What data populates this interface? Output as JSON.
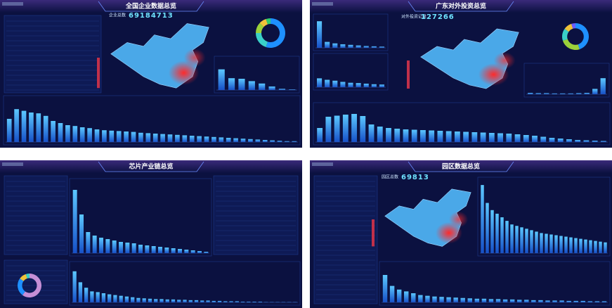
{
  "panels": [
    {
      "title": "全国企业数据总览",
      "stat_label": "企业总数",
      "stat_value": 69184713,
      "donut": {
        "values": [
          55,
          20,
          12,
          8,
          5
        ],
        "colors": [
          "#1e90ff",
          "#3ad0c8",
          "#9bd13a",
          "#f0c23a",
          "#2ecc71"
        ]
      },
      "bars": [
        {
          "values": [
            55,
            78,
            74,
            70,
            68,
            62,
            50,
            45,
            40,
            38,
            35,
            33,
            30,
            28,
            27,
            26,
            25,
            24,
            22,
            21,
            20,
            19,
            18,
            17,
            16,
            15,
            14,
            13,
            12,
            11,
            10,
            9,
            8,
            7,
            6,
            5,
            4,
            3,
            2,
            2
          ]
        },
        {
          "values": [
            70,
            40,
            38,
            30,
            22,
            12,
            4,
            2
          ]
        }
      ]
    },
    {
      "title": "广东对外投资总览",
      "stat_label": "对外投资记录",
      "stat_value": 127266,
      "donut": {
        "values": [
          45,
          25,
          15,
          10,
          5
        ],
        "colors": [
          "#1e90ff",
          "#9bd13a",
          "#3ad0c8",
          "#f0c23a",
          "#6a5cff"
        ]
      },
      "bars": [
        {
          "values": [
            40,
            72,
            75,
            78,
            80,
            74,
            50,
            44,
            40,
            38,
            36,
            35,
            34,
            33,
            32,
            31,
            30,
            29,
            28,
            27,
            26,
            25,
            24,
            22,
            20,
            18,
            15,
            12,
            10,
            8,
            6,
            5,
            4,
            3
          ]
        },
        {
          "values": [
            90,
            20,
            15,
            12,
            10,
            8,
            6,
            5,
            4
          ]
        },
        {
          "values": [
            30,
            25,
            22,
            18,
            15,
            14,
            12,
            10,
            9
          ]
        },
        {
          "values": [
            5,
            4,
            4,
            3,
            3,
            3,
            4,
            5,
            20,
            60
          ]
        }
      ]
    },
    {
      "title": "芯片产业链总览",
      "donut": {
        "values": [
          60,
          25,
          10,
          5
        ],
        "colors": [
          "#c58fd6",
          "#1e90ff",
          "#f0c23a",
          "#3ad0c8"
        ]
      },
      "bars": [
        {
          "values": [
            85,
            55,
            40,
            30,
            28,
            25,
            22,
            20,
            18,
            16,
            14,
            12,
            11,
            10,
            9,
            9,
            8,
            8,
            7,
            7,
            6,
            6,
            5,
            5,
            4,
            4,
            3,
            3,
            3,
            2,
            2,
            2,
            2,
            1,
            1,
            1,
            1,
            1,
            1
          ]
        },
        {
          "values": [
            90,
            55,
            30,
            25,
            22,
            20,
            18,
            16,
            15,
            14,
            12,
            11,
            10,
            9,
            8,
            7,
            6,
            5,
            4,
            3,
            2
          ]
        }
      ]
    },
    {
      "title": "园区数据总览",
      "stat_label": "园区总数",
      "stat_value": 69813,
      "bars": [
        {
          "values": [
            75,
            45,
            35,
            30,
            25,
            20,
            18,
            16,
            15,
            14,
            13,
            12,
            11,
            10,
            10,
            9,
            9,
            8,
            8,
            7,
            7,
            6,
            6,
            5,
            5,
            5,
            4,
            4,
            4,
            3,
            3,
            3
          ]
        },
        {
          "values": [
            95,
            70,
            60,
            55,
            50,
            45,
            40,
            38,
            36,
            34,
            32,
            30,
            28,
            27,
            26,
            25,
            24,
            23,
            22,
            21,
            20,
            19,
            18,
            17,
            16,
            15
          ]
        }
      ]
    }
  ]
}
